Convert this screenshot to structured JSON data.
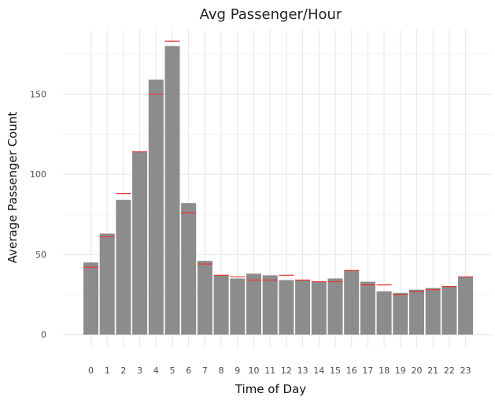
{
  "chart_data": {
    "type": "bar",
    "title": "Avg Passenger/Hour",
    "xlabel": "Time of Day",
    "ylabel": "Average Passenger Count",
    "categories": [
      "0",
      "1",
      "2",
      "3",
      "4",
      "5",
      "6",
      "7",
      "8",
      "9",
      "10",
      "11",
      "12",
      "13",
      "14",
      "15",
      "16",
      "17",
      "18",
      "19",
      "20",
      "21",
      "22",
      "23"
    ],
    "series": [
      {
        "values": [
          45,
          63,
          84,
          114,
          159,
          180,
          82,
          46,
          37,
          35,
          38,
          37,
          34,
          34,
          33,
          35,
          40,
          33,
          27,
          26,
          28,
          29,
          30,
          36
        ],
        "color": "#8c8c8c"
      },
      {
        "marker": "horizontal-line",
        "values": [
          42,
          61,
          88,
          114,
          150,
          183,
          76,
          44,
          37,
          36,
          34,
          34,
          37,
          34,
          33,
          33,
          40,
          31,
          31,
          25,
          27,
          28,
          30,
          36
        ],
        "color": "#e53935"
      }
    ],
    "yticks": [
      0,
      50,
      100,
      150
    ],
    "ylim": [
      -8,
      190
    ],
    "grid": true,
    "legend": "none"
  }
}
